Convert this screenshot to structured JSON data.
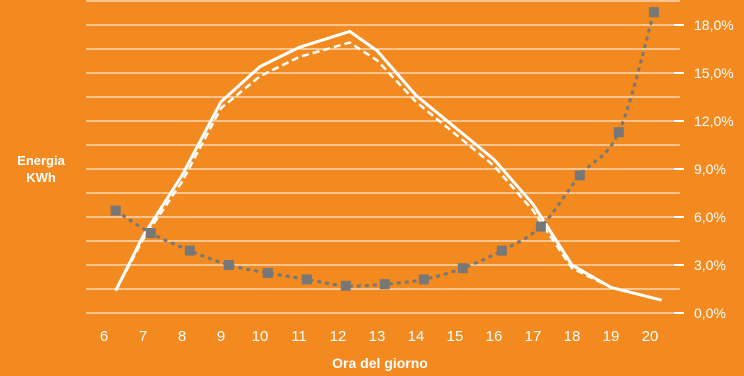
{
  "chart_data": {
    "type": "line",
    "xlabel": "Ora del giorno",
    "ylabel": [
      "Energia",
      "KWh"
    ],
    "x_ticks": [
      6,
      7,
      8,
      9,
      10,
      11,
      12,
      13,
      14,
      15,
      16,
      17,
      18,
      19,
      20
    ],
    "y_ticks": [
      "0,0%",
      "3,0%",
      "6,0%",
      "9,0%",
      "12,0%",
      "15,0%",
      "18,0%"
    ],
    "y_tick_values": [
      0,
      3,
      6,
      9,
      12,
      15,
      18
    ],
    "ylim": [
      0,
      19.5
    ],
    "xlim": [
      5.6,
      20.4
    ],
    "grid": true,
    "series": [
      {
        "style": "solid",
        "color": "#ffffff",
        "x": [
          6.3,
          7,
          8,
          9,
          10,
          11,
          12.3,
          13,
          14,
          15,
          16,
          17,
          18,
          19,
          20.3
        ],
        "y": [
          1.4,
          4.8,
          8.6,
          13.2,
          15.4,
          16.6,
          17.6,
          16.4,
          13.6,
          11.6,
          9.6,
          6.8,
          3.0,
          1.6,
          0.8
        ]
      },
      {
        "style": "dashed",
        "color": "#ffffff",
        "x": [
          6.3,
          7,
          8,
          9,
          10,
          11,
          12.3,
          13,
          14,
          15,
          16,
          17,
          18,
          19,
          20.3
        ],
        "y": [
          1.4,
          4.6,
          8.2,
          12.8,
          14.8,
          16.0,
          16.9,
          15.8,
          13.2,
          11.2,
          9.2,
          6.4,
          2.8,
          1.6,
          0.8
        ]
      },
      {
        "style": "dotted-markers",
        "color": "#777777",
        "x": [
          6.3,
          7.2,
          8.2,
          9.2,
          10.2,
          11.2,
          12.2,
          13.2,
          14.2,
          15.2,
          16.2,
          17.2,
          18.2,
          19.2,
          20.1
        ],
        "y": [
          6.4,
          5.0,
          3.9,
          3.0,
          2.5,
          2.1,
          1.7,
          1.8,
          2.1,
          2.8,
          3.9,
          5.4,
          8.6,
          11.3,
          18.8
        ]
      }
    ]
  }
}
